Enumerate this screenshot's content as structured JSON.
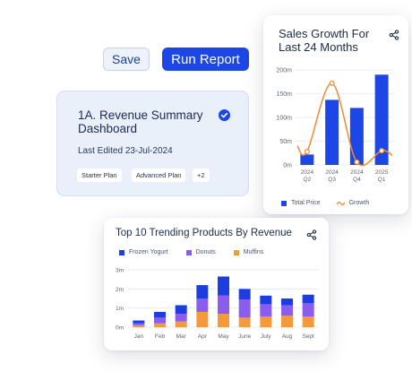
{
  "toolbar": {
    "save_label": "Save",
    "run_label": "Run Report"
  },
  "summary": {
    "title": "1A. Revenue Summary Dashboard",
    "last_edited": "Last Edited 23-Jul-2024",
    "tags": [
      "Starter Plan",
      "Advanced Plan",
      "+2"
    ]
  },
  "sales": {
    "title": "Sales Growth For Last 24 Months",
    "legend": [
      "Total Price",
      "Growth"
    ]
  },
  "trend": {
    "title": "Top 10 Trending Products By Revenue",
    "legend": [
      "Frozen Yogurt",
      "Donuts",
      "Muffins"
    ]
  },
  "colors": {
    "accent": "#1c47e6",
    "growth": "#f18a2c",
    "frozen_yogurt": "#1c3de0",
    "donuts": "#8a5cf0",
    "muffins": "#f59a3c"
  },
  "chart_data": [
    {
      "type": "bar",
      "title": "Sales Growth For Last 24 Months",
      "categories": [
        "2024 Q2",
        "2024 Q3",
        "2024 Q4",
        "2025 Q1"
      ],
      "category_lines": [
        [
          "2024",
          "Q2"
        ],
        [
          "2024",
          "Q3"
        ],
        [
          "2024",
          "Q4"
        ],
        [
          "2025",
          "Q1"
        ]
      ],
      "y_ticks": [
        "0m",
        "50m",
        "100m",
        "150m",
        "200m"
      ],
      "ylim": [
        0,
        200
      ],
      "series": [
        {
          "name": "Total Price",
          "type": "bar",
          "values": [
            22,
            137,
            120,
            190
          ]
        },
        {
          "name": "Growth",
          "type": "line",
          "values": [
            28,
            172,
            6,
            30
          ]
        }
      ],
      "grid": true,
      "legend": "bottom-left"
    },
    {
      "type": "bar",
      "stacked": true,
      "title": "Top 10 Trending Products By Revenue",
      "categories": [
        "Jan",
        "Feb",
        "Mar",
        "Apr",
        "May",
        "June",
        "July",
        "Aug",
        "Sept"
      ],
      "y_ticks": [
        "0m",
        "1m",
        "2m",
        "3m"
      ],
      "ylim": [
        0,
        3
      ],
      "series": [
        {
          "name": "Frozen Yogurt",
          "values": [
            0.15,
            0.3,
            0.45,
            0.7,
            1.0,
            0.55,
            0.45,
            0.35,
            0.45
          ]
        },
        {
          "name": "Donuts",
          "values": [
            0.1,
            0.3,
            0.4,
            0.7,
            0.95,
            0.95,
            0.65,
            0.55,
            0.7
          ]
        },
        {
          "name": "Muffins",
          "values": [
            0.1,
            0.2,
            0.3,
            0.8,
            0.7,
            0.5,
            0.55,
            0.6,
            0.55
          ]
        }
      ],
      "grid": true,
      "legend": "top-left"
    }
  ]
}
